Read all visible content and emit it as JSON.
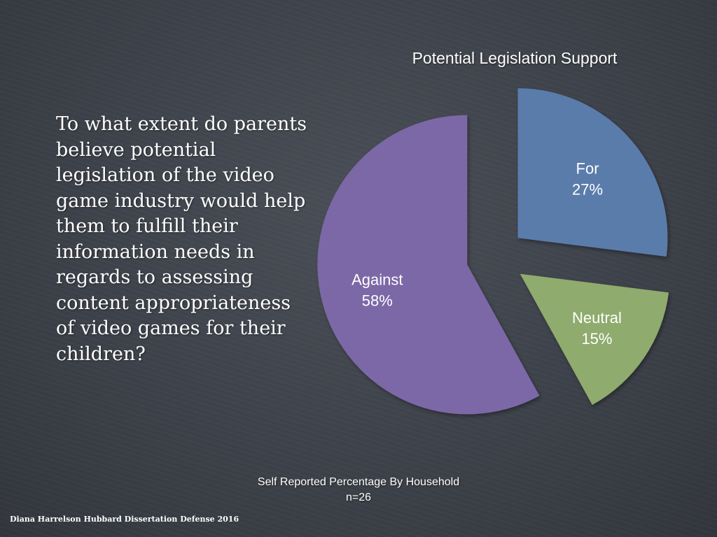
{
  "slide": {
    "question": "To what extent do parents believe potential legislation of the video game industry would help them to fulfill their information needs in regards to assessing content appropriateness of video games for their children?",
    "footer": "Diana Harrelson Hubbard Dissertation Defense 2016"
  },
  "chart_data": {
    "type": "pie",
    "title": "Potential Legislation Support",
    "subtitle_line1": "Self Reported Percentage By Household",
    "subtitle_line2": "n=26",
    "slices": [
      {
        "label": "For",
        "value": 27,
        "value_label": "27%",
        "color": "#5a7bab"
      },
      {
        "label": "Neutral",
        "value": 15,
        "value_label": "15%",
        "color": "#8fab6e"
      },
      {
        "label": "Against",
        "value": 58,
        "value_label": "58%",
        "color": "#7b67a7"
      }
    ]
  }
}
